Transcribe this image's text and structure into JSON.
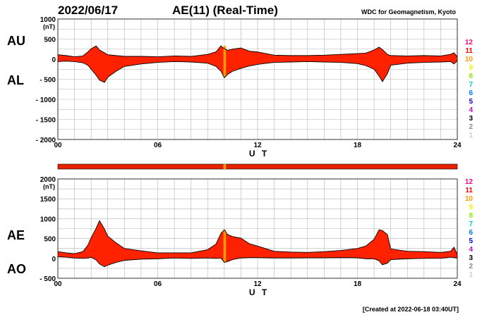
{
  "header": {
    "date": "2022/06/17",
    "title": "AE(11) (Real-Time)",
    "source": "WDC for Geomagnetism, Kyoto"
  },
  "footer": {
    "created": "[Created at 2022-06-18 03:40UT]"
  },
  "colors": {
    "fill": "#ff2200",
    "highlight": "#ff9a00",
    "strip": "#e62200"
  },
  "legend": {
    "labels": [
      "12",
      "11",
      "10",
      "9",
      "8",
      "7",
      "6",
      "5",
      "4",
      "3",
      "2",
      "1"
    ],
    "colors": [
      "#ff0088",
      "#ff0000",
      "#ff9900",
      "#ffee00",
      "#88ee00",
      "#00cccc",
      "#0077ff",
      "#0000cc",
      "#cc00cc",
      "#000000",
      "#888888",
      "#cccccc"
    ]
  },
  "chart_data": [
    {
      "type": "area",
      "panel": "top",
      "series_names": [
        "AU",
        "AL"
      ],
      "unit": "(nT)",
      "xlabel": "U T",
      "xticks": [
        "00",
        "06",
        "12",
        "18",
        "24"
      ],
      "xlim": [
        0,
        24
      ],
      "ylim": [
        -2000,
        1000
      ],
      "yticks": [
        "1000",
        "500",
        "0",
        "- 500",
        "- 1000",
        "- 1500",
        "- 2000"
      ],
      "x": [
        0,
        0.5,
        1,
        1.5,
        1.8,
        2.0,
        2.3,
        2.5,
        2.8,
        3.0,
        3.5,
        4,
        5,
        6,
        7,
        8,
        9,
        9.5,
        9.8,
        10.0,
        10.2,
        10.5,
        11,
        11.5,
        12,
        13,
        14,
        15,
        16,
        17,
        18,
        18.5,
        19,
        19.3,
        19.5,
        19.8,
        20,
        21,
        22,
        23,
        23.6,
        23.8,
        24
      ],
      "upper": [
        110,
        90,
        60,
        80,
        180,
        260,
        330,
        230,
        160,
        110,
        90,
        70,
        70,
        60,
        80,
        70,
        120,
        180,
        330,
        260,
        220,
        250,
        280,
        200,
        180,
        100,
        90,
        90,
        100,
        120,
        140,
        150,
        230,
        300,
        240,
        120,
        90,
        80,
        90,
        80,
        120,
        160,
        60
      ],
      "lower": [
        -60,
        -50,
        -60,
        -90,
        -150,
        -250,
        -400,
        -520,
        -580,
        -450,
        -300,
        -180,
        -120,
        -80,
        -60,
        -70,
        -100,
        -180,
        -300,
        -460,
        -380,
        -300,
        -230,
        -170,
        -130,
        -80,
        -70,
        -60,
        -70,
        -80,
        -110,
        -160,
        -250,
        -420,
        -560,
        -360,
        -150,
        -100,
        -80,
        -70,
        -60,
        -120,
        -40
      ]
    },
    {
      "type": "area",
      "panel": "bottom",
      "series_names": [
        "AE",
        "AO"
      ],
      "unit": "(nT)",
      "xlabel": "U T",
      "xticks": [
        "00",
        "06",
        "12",
        "18",
        "24"
      ],
      "xlim": [
        0,
        24
      ],
      "ylim": [
        -500,
        2000
      ],
      "yticks": [
        "2000",
        "1500",
        "1000",
        "500",
        "0",
        "- 500"
      ],
      "x": [
        0,
        0.5,
        1,
        1.5,
        1.8,
        2.0,
        2.3,
        2.5,
        2.8,
        3.0,
        3.5,
        4,
        5,
        6,
        7,
        8,
        9,
        9.5,
        9.8,
        10.0,
        10.2,
        10.5,
        11,
        11.5,
        12,
        13,
        14,
        15,
        16,
        17,
        18,
        18.5,
        19,
        19.3,
        19.5,
        19.8,
        20,
        21,
        22,
        23,
        23.6,
        23.8,
        24
      ],
      "upper": [
        170,
        140,
        120,
        170,
        330,
        520,
        760,
        950,
        740,
        560,
        390,
        250,
        190,
        140,
        140,
        140,
        220,
        360,
        630,
        720,
        600,
        550,
        510,
        370,
        310,
        180,
        160,
        150,
        170,
        200,
        250,
        310,
        480,
        720,
        700,
        600,
        240,
        180,
        170,
        150,
        180,
        280,
        100
      ],
      "lower": [
        40,
        30,
        10,
        0,
        10,
        30,
        -40,
        -140,
        -210,
        -170,
        -100,
        -50,
        -20,
        -10,
        10,
        0,
        10,
        0,
        10,
        -100,
        -80,
        -30,
        10,
        20,
        20,
        10,
        10,
        15,
        15,
        20,
        15,
        -10,
        -10,
        -60,
        -160,
        -120,
        -30,
        -10,
        0,
        5,
        30,
        20,
        10
      ]
    }
  ]
}
